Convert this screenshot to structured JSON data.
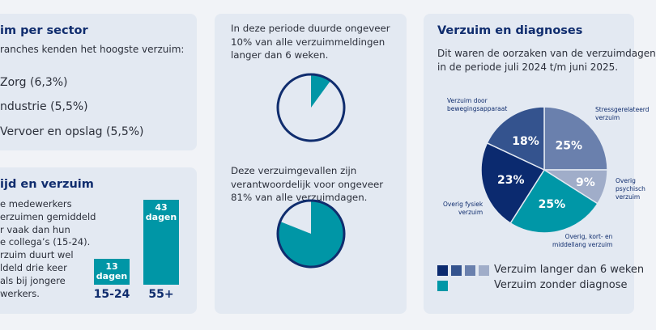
{
  "sector": {
    "title": "im per sector",
    "intro": "ranches kenden het hoogste verzuim:",
    "items": [
      "Zorg (6,3%)",
      "ndustrie (5,5%)",
      "Vervoer en opslag (5,5%)"
    ]
  },
  "age": {
    "title": "ijd en verzuim",
    "lines": [
      "e medewerkers",
      "erzuimen gemiddeld",
      "r vaak dan hun",
      "e collega’s (15-24).",
      "rzuim duurt wel",
      "ldeld drie keer",
      "als bij jongere",
      "werkers."
    ],
    "bars": [
      {
        "category": "15-24",
        "value": 13,
        "value_label": "13",
        "unit": "dagen"
      },
      {
        "category": "55+",
        "value": 43,
        "value_label": "43",
        "unit": "dagen"
      }
    ]
  },
  "middle": {
    "text1": [
      "In deze periode duurde ongeveer",
      "10% van alle verzuimmeldingen",
      "langer dan 6 weken."
    ],
    "pct1": 10,
    "text2": [
      "Deze verzuimgevallen zijn",
      "verantwoordelijk voor ongeveer",
      "81% van alle verzuimdagen."
    ],
    "pct2": 81
  },
  "diagnoses": {
    "title": "Verzuim en diagnoses",
    "intro": [
      "Dit waren de oorzaken van de verzuimdagen",
      "in de periode juli 2024 t/m juni 2025."
    ],
    "slices": [
      {
        "label": [
          "Stressgerelateerd",
          "verzuim"
        ],
        "value": 25,
        "value_label": "25%",
        "color": "#6a80ad"
      },
      {
        "label": [
          "Overig",
          "psychisch",
          "verzuim"
        ],
        "value": 9,
        "value_label": "9%",
        "color": "#a0adc9"
      },
      {
        "label": [
          "Overig, kort- en",
          "middellang verzuim"
        ],
        "value": 25,
        "value_label": "25%",
        "color": "#0097a7"
      },
      {
        "label": [
          "Overig fysiek",
          "verzuim"
        ],
        "value": 23,
        "value_label": "23%",
        "color": "#0b2a6f"
      },
      {
        "label": [
          "Verzuim door",
          "bewegingsapparaat"
        ],
        "value": 18,
        "value_label": "18%",
        "color": "#34538e"
      }
    ],
    "legend": [
      "Verzuim langer dan 6 weken",
      "Verzuim zonder diagnose"
    ]
  },
  "colors": {
    "navy": "#102d6e",
    "teal": "#0096a6"
  }
}
